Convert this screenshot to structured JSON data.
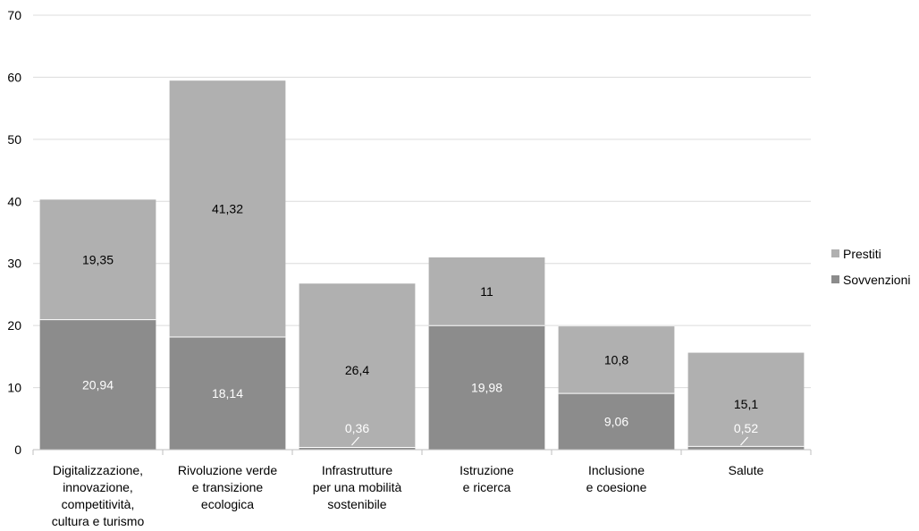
{
  "chart_data": {
    "type": "bar",
    "stacked": true,
    "categories": [
      [
        "Digitalizzazione,",
        "innovazione,",
        "competitività,",
        "cultura e turismo"
      ],
      [
        "Rivoluzione verde",
        "e transizione",
        "ecologica"
      ],
      [
        "Infrastrutture",
        "per una mobilità",
        "sostenibile"
      ],
      [
        "Istruzione",
        "e ricerca"
      ],
      [
        "Inclusione",
        "e coesione"
      ],
      [
        "Salute"
      ]
    ],
    "series": [
      {
        "name": "Sovvenzioni",
        "color": "#8c8c8c",
        "values": [
          20.94,
          18.14,
          0.36,
          19.98,
          9.06,
          0.52
        ],
        "labels": [
          "20,94",
          "18,14",
          "0,36",
          "19,98",
          "9,06",
          "0,52"
        ]
      },
      {
        "name": "Prestiti",
        "color": "#b0b0b0",
        "values": [
          19.35,
          41.32,
          26.4,
          11,
          10.8,
          15.1
        ],
        "labels": [
          "19,35",
          "41,32",
          "26,4",
          "11",
          "10,8",
          "15,1"
        ]
      }
    ],
    "ylim": [
      0,
      70
    ],
    "yticks": [
      "0",
      "10",
      "20",
      "30",
      "40",
      "50",
      "60",
      "70"
    ],
    "grid": true,
    "legend": "right"
  }
}
